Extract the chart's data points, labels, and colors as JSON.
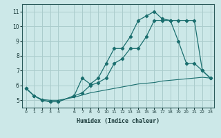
{
  "xlabel": "Humidex (Indice chaleur)",
  "background_color": "#cce8e8",
  "grid_color": "#aacccc",
  "line_color": "#1a6e6e",
  "xlim": [
    -0.5,
    23.5
  ],
  "ylim": [
    4.5,
    11.5
  ],
  "yticks": [
    5,
    6,
    7,
    8,
    9,
    10,
    11
  ],
  "xticks": [
    0,
    1,
    2,
    3,
    4,
    6,
    7,
    8,
    9,
    10,
    11,
    12,
    13,
    14,
    15,
    16,
    17,
    18,
    19,
    20,
    21,
    22,
    23
  ],
  "curve_peak_x": [
    0,
    1,
    2,
    3,
    4,
    6,
    7,
    8,
    9,
    10,
    11,
    12,
    13,
    14,
    15,
    16,
    17,
    18,
    19,
    20,
    21,
    22,
    23
  ],
  "curve_peak_y": [
    5.8,
    5.3,
    5.0,
    4.9,
    4.9,
    5.3,
    6.5,
    6.1,
    6.5,
    7.5,
    8.5,
    8.5,
    9.3,
    10.4,
    10.7,
    11.0,
    10.5,
    10.4,
    10.4,
    10.4,
    10.4,
    7.0,
    6.5
  ],
  "curve_broad_x": [
    0,
    1,
    2,
    3,
    4,
    6,
    7,
    8,
    9,
    10,
    11,
    12,
    13,
    14,
    15,
    16,
    17,
    18,
    19,
    20,
    21,
    22,
    23
  ],
  "curve_broad_y": [
    5.8,
    5.3,
    5.0,
    4.9,
    4.9,
    5.3,
    5.5,
    6.0,
    6.2,
    6.5,
    7.5,
    7.8,
    8.5,
    8.5,
    9.3,
    10.4,
    10.4,
    10.4,
    9.0,
    7.5,
    7.5,
    7.0,
    6.5
  ],
  "curve_flat_x": [
    0,
    1,
    2,
    3,
    4,
    6,
    7,
    8,
    9,
    10,
    11,
    12,
    13,
    14,
    15,
    16,
    17,
    18,
    19,
    20,
    21,
    22,
    23
  ],
  "curve_flat_y": [
    5.8,
    5.3,
    5.05,
    5.0,
    5.0,
    5.2,
    5.35,
    5.5,
    5.6,
    5.7,
    5.8,
    5.9,
    6.0,
    6.1,
    6.15,
    6.2,
    6.3,
    6.35,
    6.4,
    6.45,
    6.5,
    6.55,
    6.5
  ]
}
